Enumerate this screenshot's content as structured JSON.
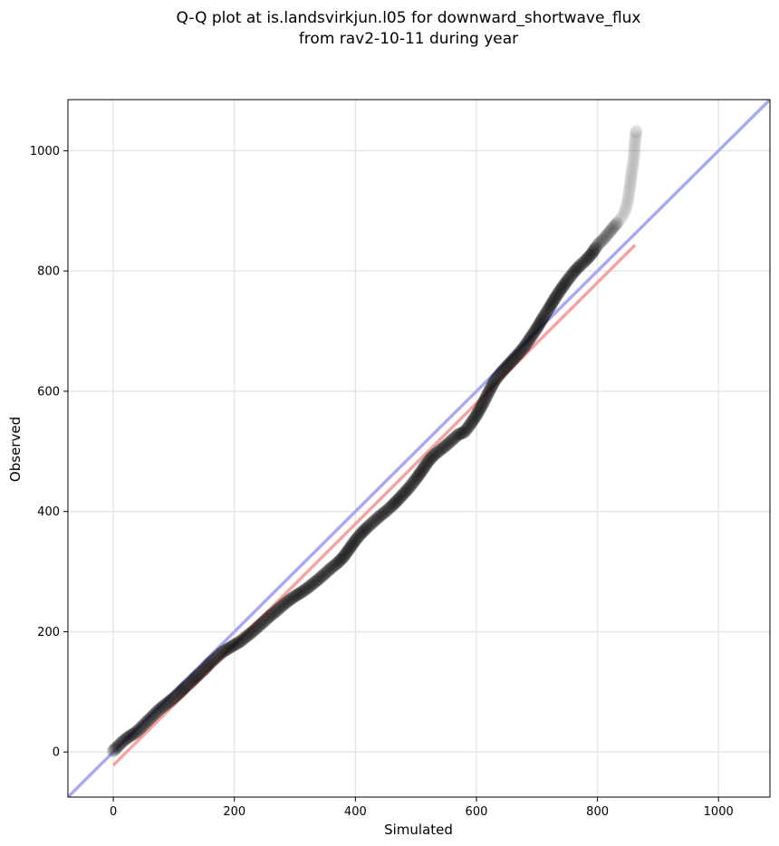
{
  "chart_data": {
    "type": "scatter",
    "title": [
      "Q-Q plot at is.landsvirkjun.l05 for downward_shortwave_flux",
      "from rav2-10-11 during year"
    ],
    "xlabel": "Simulated",
    "ylabel": "Observed",
    "xlim": [
      -75,
      1085
    ],
    "ylim": [
      -75,
      1085
    ],
    "xticks": [
      0,
      200,
      400,
      600,
      800,
      1000
    ],
    "yticks": [
      0,
      200,
      400,
      600,
      800,
      1000
    ],
    "grid": true,
    "reference_line": {
      "from": [
        -75,
        -75
      ],
      "to": [
        1085,
        1085
      ],
      "color": "#aaaaf2"
    },
    "fit_line": {
      "from": [
        0,
        -22
      ],
      "to": [
        862,
        843
      ],
      "color": "#f5a3a3"
    },
    "point_color": "#000000",
    "points": [
      [
        0,
        2
      ],
      [
        5,
        7
      ],
      [
        10,
        12
      ],
      [
        15,
        17
      ],
      [
        20,
        21
      ],
      [
        25,
        25
      ],
      [
        30,
        28
      ],
      [
        35,
        31
      ],
      [
        40,
        35
      ],
      [
        45,
        40
      ],
      [
        50,
        45
      ],
      [
        55,
        50
      ],
      [
        60,
        55
      ],
      [
        65,
        60
      ],
      [
        70,
        65
      ],
      [
        75,
        70
      ],
      [
        80,
        74
      ],
      [
        85,
        78
      ],
      [
        90,
        82
      ],
      [
        95,
        86
      ],
      [
        100,
        90
      ],
      [
        110,
        99
      ],
      [
        120,
        109
      ],
      [
        130,
        118
      ],
      [
        140,
        128
      ],
      [
        150,
        137
      ],
      [
        160,
        148
      ],
      [
        170,
        157
      ],
      [
        180,
        166
      ],
      [
        190,
        172
      ],
      [
        200,
        178
      ],
      [
        210,
        184
      ],
      [
        220,
        192
      ],
      [
        230,
        200
      ],
      [
        240,
        209
      ],
      [
        250,
        218
      ],
      [
        260,
        227
      ],
      [
        270,
        235
      ],
      [
        280,
        244
      ],
      [
        290,
        252
      ],
      [
        300,
        259
      ],
      [
        310,
        265
      ],
      [
        320,
        272
      ],
      [
        330,
        280
      ],
      [
        340,
        288
      ],
      [
        350,
        297
      ],
      [
        360,
        306
      ],
      [
        370,
        314
      ],
      [
        380,
        324
      ],
      [
        390,
        338
      ],
      [
        400,
        352
      ],
      [
        410,
        364
      ],
      [
        420,
        374
      ],
      [
        430,
        383
      ],
      [
        440,
        392
      ],
      [
        450,
        400
      ],
      [
        460,
        409
      ],
      [
        470,
        419
      ],
      [
        480,
        430
      ],
      [
        490,
        441
      ],
      [
        500,
        454
      ],
      [
        510,
        468
      ],
      [
        520,
        483
      ],
      [
        530,
        494
      ],
      [
        540,
        502
      ],
      [
        550,
        510
      ],
      [
        560,
        519
      ],
      [
        570,
        528
      ],
      [
        580,
        532
      ],
      [
        590,
        545
      ],
      [
        600,
        560
      ],
      [
        610,
        578
      ],
      [
        620,
        598
      ],
      [
        630,
        617
      ],
      [
        640,
        630
      ],
      [
        650,
        641
      ],
      [
        660,
        652
      ],
      [
        670,
        663
      ],
      [
        680,
        675
      ],
      [
        690,
        690
      ],
      [
        700,
        705
      ],
      [
        710,
        722
      ],
      [
        720,
        738
      ],
      [
        730,
        755
      ],
      [
        740,
        770
      ],
      [
        750,
        784
      ],
      [
        760,
        797
      ],
      [
        770,
        808
      ],
      [
        780,
        817
      ],
      [
        790,
        828
      ],
      [
        800,
        843
      ],
      [
        810,
        853
      ],
      [
        820,
        865
      ],
      [
        830,
        877
      ],
      [
        840,
        889
      ],
      [
        845,
        898
      ],
      [
        850,
        915
      ],
      [
        852,
        930
      ],
      [
        855,
        950
      ],
      [
        857,
        967
      ],
      [
        860,
        985
      ],
      [
        862,
        1015
      ],
      [
        864,
        1032
      ]
    ]
  }
}
